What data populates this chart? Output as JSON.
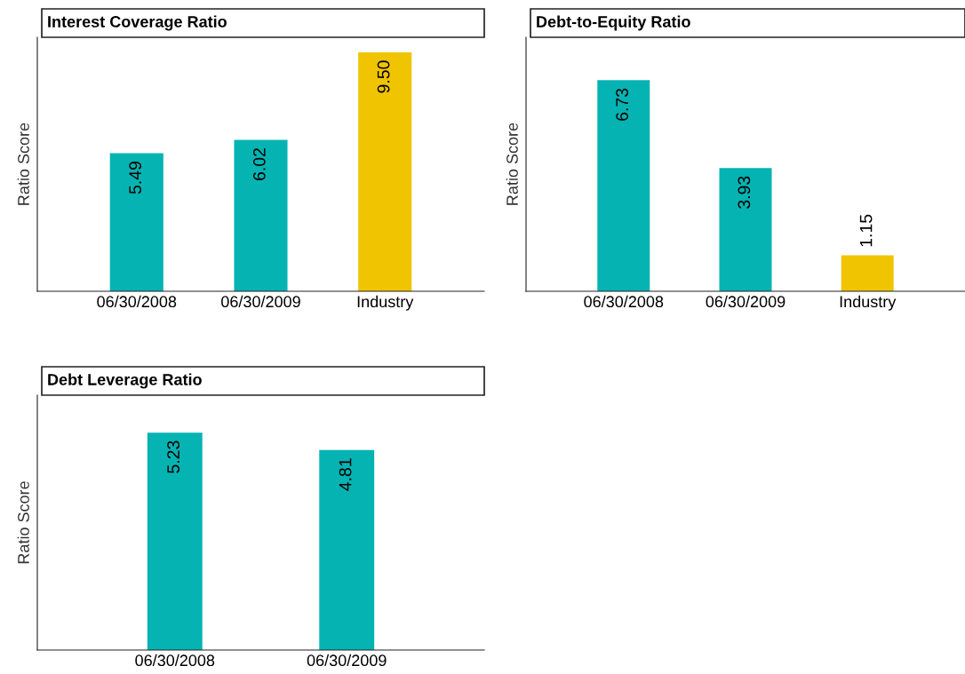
{
  "chart_data": [
    {
      "type": "bar",
      "title": "Interest Coverage Ratio",
      "ylabel": "Ratio Score",
      "categories": [
        "06/30/2008",
        "06/30/2009",
        "Industry"
      ],
      "values": [
        5.49,
        6.02,
        9.5
      ],
      "colors": [
        "#06b3b3",
        "#06b3b3",
        "#f0c400"
      ],
      "value_labels": [
        "5.49",
        "6.02",
        "9.50"
      ],
      "ylim": [
        0,
        10.1
      ],
      "grid": false,
      "legend": false
    },
    {
      "type": "bar",
      "title": "Debt-to-Equity Ratio",
      "ylabel": "Ratio Score",
      "categories": [
        "06/30/2008",
        "06/30/2009",
        "Industry"
      ],
      "values": [
        6.73,
        3.93,
        1.15
      ],
      "colors": [
        "#06b3b3",
        "#06b3b3",
        "#f0c400"
      ],
      "value_labels": [
        "6.73",
        "3.93",
        "1.15"
      ],
      "ylim": [
        0,
        8.1
      ],
      "grid": false,
      "legend": false
    },
    {
      "type": "bar",
      "title": "Debt Leverage Ratio",
      "ylabel": "Ratio Score",
      "categories": [
        "06/30/2008",
        "06/30/2009"
      ],
      "values": [
        5.23,
        4.81
      ],
      "colors": [
        "#06b3b3",
        "#06b3b3"
      ],
      "value_labels": [
        "5.23",
        "4.81"
      ],
      "ylim": [
        0,
        6.13
      ],
      "grid": false,
      "legend": false
    }
  ]
}
